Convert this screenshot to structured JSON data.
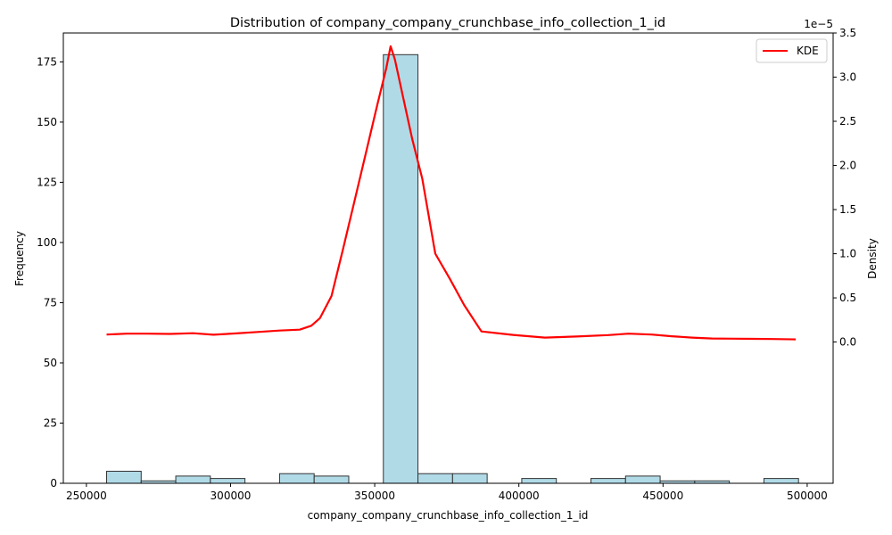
{
  "chart_data": {
    "type": "bar",
    "title": "Distribution of company_company_crunchbase_info_collection_1_id",
    "xlabel": "company_company_crunchbase_info_collection_1_id",
    "ylabel": "Frequency",
    "y2label": "Density",
    "y2_offset_text": "1e−5",
    "xlim": [
      242000,
      509000
    ],
    "ylim": [
      0,
      187
    ],
    "y2lim": [
      -1.6,
      3.5
    ],
    "x_ticks": [
      250000,
      300000,
      350000,
      400000,
      450000,
      500000
    ],
    "x_tick_labels": [
      "250000",
      "300000",
      "350000",
      "400000",
      "450000",
      "500000"
    ],
    "y_ticks": [
      0,
      25,
      50,
      75,
      100,
      125,
      150,
      175
    ],
    "y_tick_labels": [
      "0",
      "25",
      "50",
      "75",
      "100",
      "125",
      "150",
      "175"
    ],
    "y2_ticks": [
      0.0,
      0.5,
      1.0,
      1.5,
      2.0,
      2.5,
      3.0,
      3.5
    ],
    "y2_tick_labels": [
      "0.0",
      "0.5",
      "1.0",
      "1.5",
      "2.0",
      "2.5",
      "3.0",
      "3.5"
    ],
    "bar_color": "#add8e6",
    "bar_edge_color": "#333333",
    "grid": false,
    "histogram": {
      "bins": [
        {
          "start": 257000,
          "end": 269000,
          "count": 5
        },
        {
          "start": 269000,
          "end": 281000,
          "count": 1
        },
        {
          "start": 281000,
          "end": 293000,
          "count": 3
        },
        {
          "start": 293000,
          "end": 305000,
          "count": 2
        },
        {
          "start": 305000,
          "end": 317000,
          "count": 0
        },
        {
          "start": 317000,
          "end": 329000,
          "count": 4
        },
        {
          "start": 329000,
          "end": 341000,
          "count": 3
        },
        {
          "start": 341000,
          "end": 353000,
          "count": 0
        },
        {
          "start": 353000,
          "end": 365000,
          "count": 178
        },
        {
          "start": 365000,
          "end": 377000,
          "count": 4
        },
        {
          "start": 377000,
          "end": 389000,
          "count": 4
        },
        {
          "start": 389000,
          "end": 401000,
          "count": 0
        },
        {
          "start": 401000,
          "end": 413000,
          "count": 2
        },
        {
          "start": 413000,
          "end": 425000,
          "count": 0
        },
        {
          "start": 425000,
          "end": 437000,
          "count": 2
        },
        {
          "start": 437000,
          "end": 449000,
          "count": 3
        },
        {
          "start": 449000,
          "end": 461000,
          "count": 1
        },
        {
          "start": 461000,
          "end": 473000,
          "count": 1
        },
        {
          "start": 473000,
          "end": 485000,
          "count": 0
        },
        {
          "start": 485000,
          "end": 497000,
          "count": 2
        }
      ]
    },
    "series": [
      {
        "name": "KDE",
        "color": "#ff0000",
        "x": [
          257000,
          264000,
          271000,
          279000,
          287000,
          294000,
          302000,
          310000,
          317000,
          324000,
          328000,
          331000,
          335000,
          339000,
          343000,
          347000,
          351000,
          354000,
          355500,
          357000,
          360000,
          363000,
          366500,
          371000,
          376000,
          381000,
          387000,
          398000,
          409000,
          420000,
          431000,
          438000,
          446000,
          453000,
          460000,
          467000,
          474000,
          481000,
          488000,
          496000
        ],
        "y": [
          0.085,
          0.095,
          0.095,
          0.092,
          0.1,
          0.082,
          0.098,
          0.115,
          0.13,
          0.14,
          0.185,
          0.27,
          0.52,
          1.05,
          1.6,
          2.15,
          2.7,
          3.1,
          3.35,
          3.2,
          2.75,
          2.3,
          1.85,
          1.0,
          0.72,
          0.42,
          0.12,
          0.08,
          0.05,
          0.062,
          0.078,
          0.095,
          0.085,
          0.065,
          0.05,
          0.04,
          0.038,
          0.036,
          0.034,
          0.03
        ]
      }
    ],
    "legend": {
      "entries": [
        "KDE"
      ],
      "placement": "top-right"
    }
  }
}
